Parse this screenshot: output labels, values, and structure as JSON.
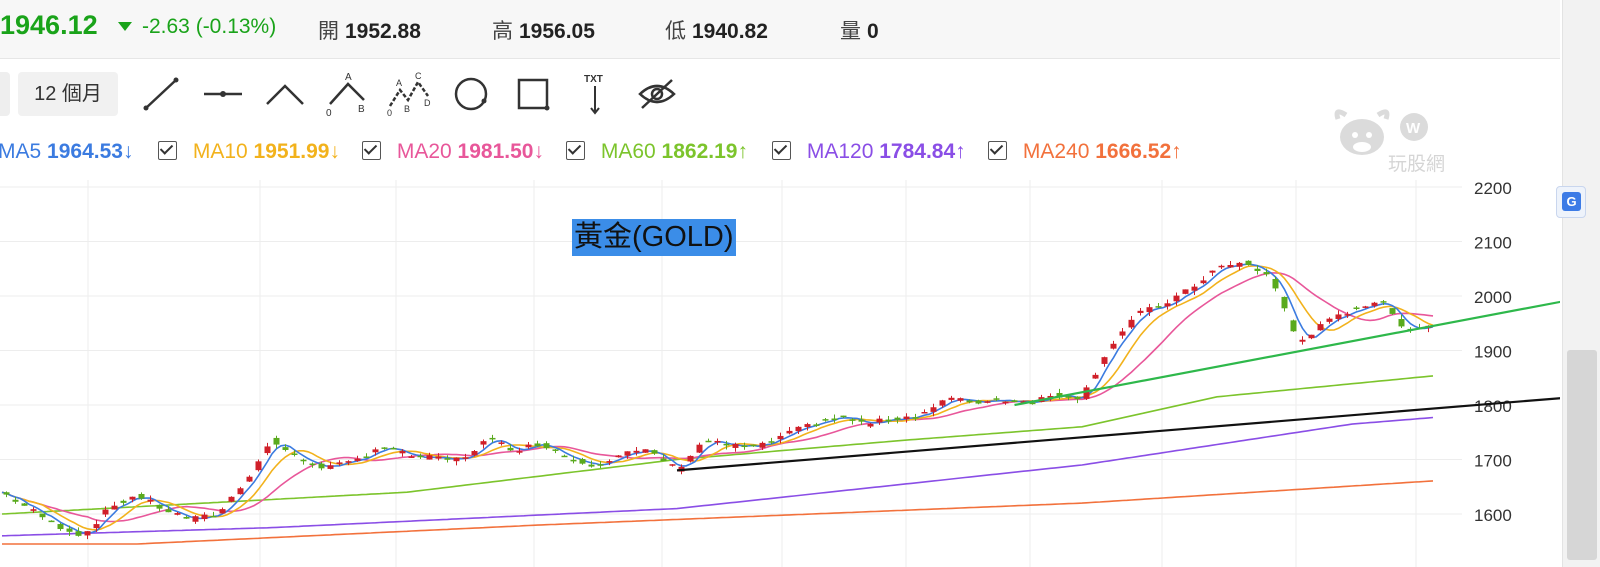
{
  "quote": {
    "price": "1946.12",
    "change": "-2.63 (-0.13%)",
    "open_label": "開",
    "open": "1952.88",
    "high_label": "高",
    "high": "1956.05",
    "low_label": "低",
    "low": "1940.82",
    "volume_label": "量",
    "volume": "0"
  },
  "toolbar": {
    "period": "12 個月",
    "tools": [
      "line-tool-icon",
      "horizontal-line-tool-icon",
      "angle-tool-icon",
      "abc-wave-tool-icon",
      "abcd-wave-tool-icon",
      "circle-tool-icon",
      "rectangle-tool-icon",
      "text-tool-icon",
      "hide-drawings-icon"
    ]
  },
  "watermark": "玩股網",
  "ma_legend": [
    {
      "name": "MA5",
      "value": "1964.53",
      "arrow": "↓",
      "color": "#3b7be0"
    },
    {
      "name": "MA10",
      "value": "1951.99",
      "arrow": "↓",
      "color": "#f2b21c"
    },
    {
      "name": "MA20",
      "value": "1981.50",
      "arrow": "↓",
      "color": "#e8579a"
    },
    {
      "name": "MA60",
      "value": "1862.19",
      "arrow": "↑",
      "color": "#7cc42c"
    },
    {
      "name": "MA120",
      "value": "1784.84",
      "arrow": "↑",
      "color": "#8a4ee6"
    },
    {
      "name": "MA240",
      "value": "1666.52",
      "arrow": "↑",
      "color": "#f2713c"
    }
  ],
  "chart_data": {
    "type": "candlestick",
    "title": "黃金(GOLD)",
    "yaxis_ticks": [
      "2200",
      "2100",
      "2000",
      "1900",
      "1800",
      "1700",
      "1600"
    ],
    "ylim": [
      1575,
      2200
    ],
    "grid": true,
    "up_color": "#d0202a",
    "down_color": "#5aaa1e",
    "bars": 240,
    "key_closes": [
      [
        0,
        1640
      ],
      [
        6,
        1610
      ],
      [
        12,
        1580
      ],
      [
        18,
        1560
      ],
      [
        24,
        1612
      ],
      [
        30,
        1635
      ],
      [
        36,
        1608
      ],
      [
        42,
        1590
      ],
      [
        48,
        1600
      ],
      [
        54,
        1660
      ],
      [
        60,
        1735
      ],
      [
        66,
        1700
      ],
      [
        72,
        1685
      ],
      [
        78,
        1695
      ],
      [
        84,
        1725
      ],
      [
        90,
        1708
      ],
      [
        96,
        1702
      ],
      [
        102,
        1700
      ],
      [
        108,
        1738
      ],
      [
        114,
        1718
      ],
      [
        120,
        1730
      ],
      [
        126,
        1702
      ],
      [
        132,
        1690
      ],
      [
        138,
        1712
      ],
      [
        144,
        1715
      ],
      [
        150,
        1682
      ],
      [
        156,
        1735
      ],
      [
        162,
        1725
      ],
      [
        168,
        1722
      ],
      [
        174,
        1745
      ],
      [
        180,
        1765
      ],
      [
        186,
        1778
      ],
      [
        192,
        1765
      ],
      [
        198,
        1775
      ],
      [
        204,
        1782
      ],
      [
        210,
        1812
      ],
      [
        216,
        1805
      ],
      [
        222,
        1810
      ],
      [
        228,
        1806
      ],
      [
        234,
        1818
      ],
      [
        240,
        1815
      ],
      [
        246,
        1905
      ],
      [
        252,
        1965
      ],
      [
        258,
        1985
      ],
      [
        264,
        2012
      ],
      [
        270,
        2052
      ],
      [
        276,
        2060
      ],
      [
        282,
        2035
      ],
      [
        288,
        1915
      ],
      [
        294,
        1950
      ],
      [
        300,
        1975
      ],
      [
        306,
        1992
      ],
      [
        312,
        1940
      ],
      [
        318,
        1946
      ]
    ],
    "ma_series": {
      "MA60": [
        [
          0,
          1600
        ],
        [
          90,
          1640
        ],
        [
          150,
          1700
        ],
        [
          200,
          1735
        ],
        [
          240,
          1760
        ],
        [
          270,
          1815
        ],
        [
          330,
          1863
        ]
      ],
      "MA120": [
        [
          0,
          1560
        ],
        [
          60,
          1575
        ],
        [
          150,
          1610
        ],
        [
          240,
          1690
        ],
        [
          300,
          1765
        ],
        [
          330,
          1785
        ]
      ],
      "MA240": [
        [
          30,
          1545
        ],
        [
          120,
          1580
        ],
        [
          240,
          1620
        ],
        [
          330,
          1667
        ]
      ]
    },
    "trendlines": [
      {
        "name": "black-trendline",
        "color": "#111111",
        "from": [
          150,
          1680
        ],
        "to": [
          350,
          1815
        ]
      },
      {
        "name": "green-trendline",
        "color": "#2eb84b",
        "from": [
          225,
          1800
        ],
        "to": [
          350,
          1995
        ]
      }
    ]
  }
}
